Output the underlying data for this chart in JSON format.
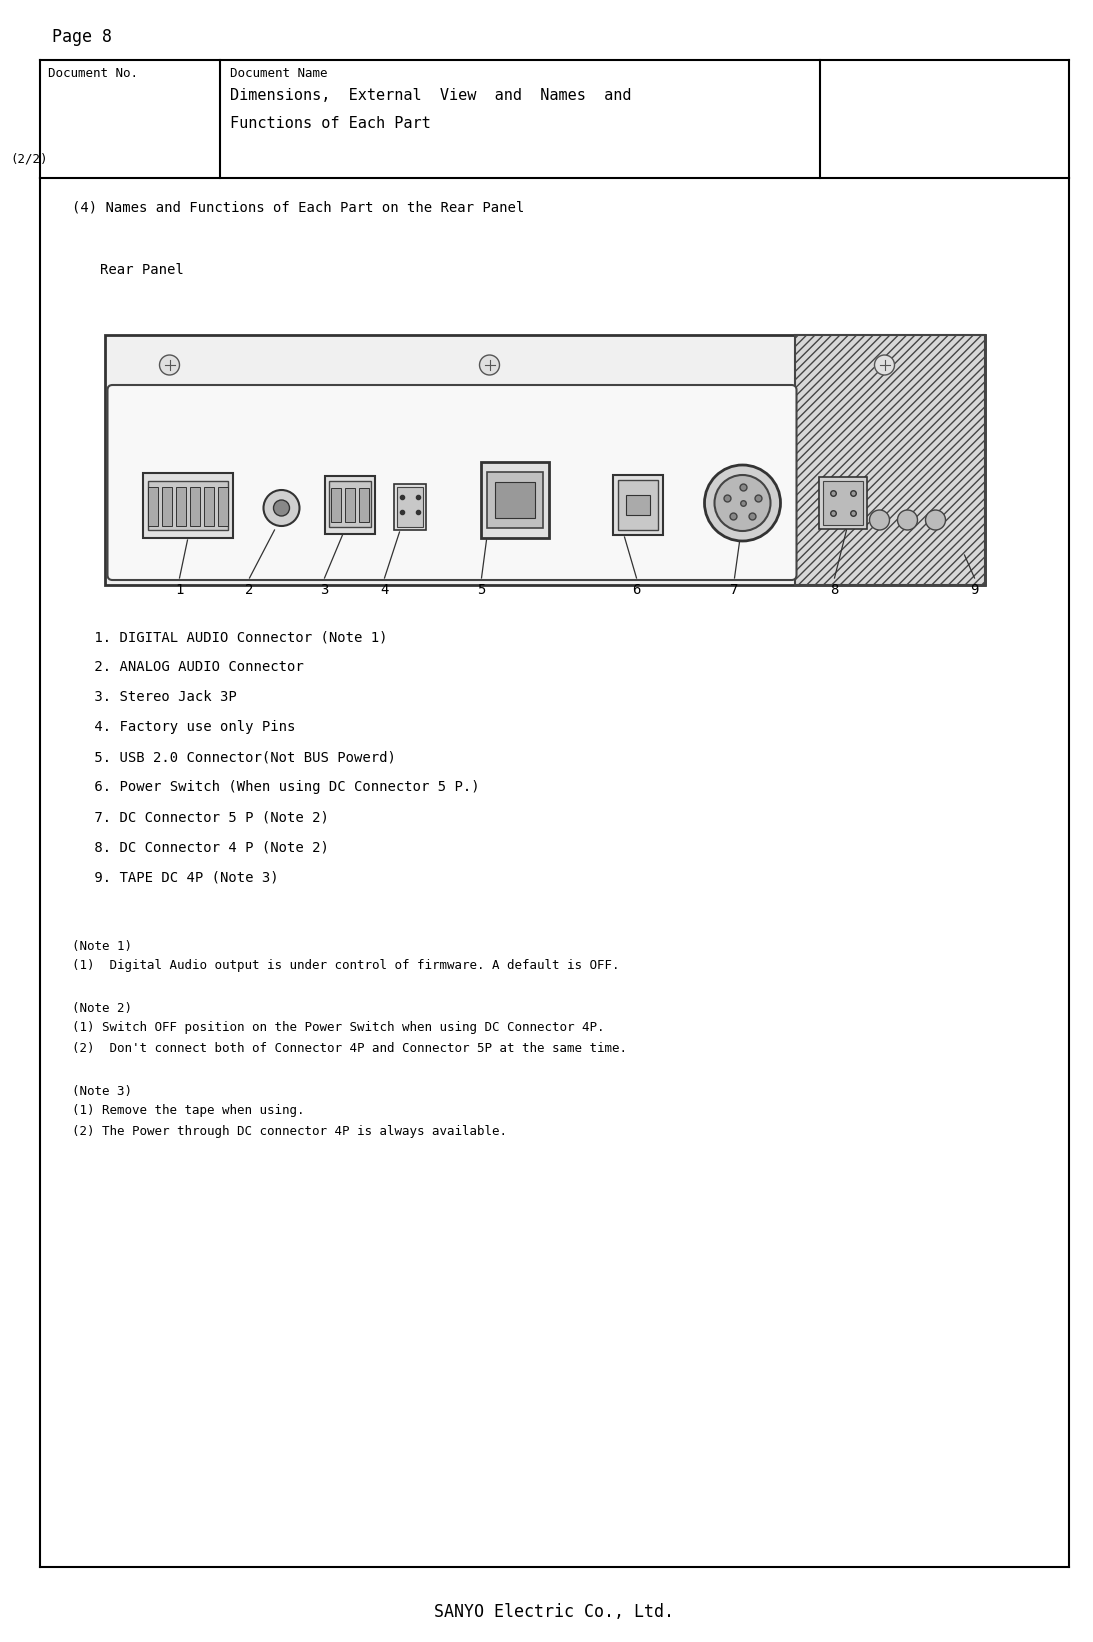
{
  "page_title": "Page 8",
  "doc_no_label": "Document No.",
  "doc_name_label": "Document Name",
  "doc_sub": "(2/2)",
  "doc_name_line1": "Dimensions,  External  View  and  Names  and",
  "doc_name_line2": "Functions of Each Part",
  "section_title": "(4) Names and Functions of Each Part on the Rear Panel",
  "rear_panel_label": "Rear Panel",
  "parts_list": [
    " 1. DIGITAL AUDIO Connector (Note 1)",
    " 2. ANALOG AUDIO Connector",
    " 3. Stereo Jack 3P",
    " 4. Factory use only Pins",
    " 5. USB 2.0 Connector(Not BUS Powerd)",
    " 6. Power Switch (When using DC Connector 5 P.)",
    " 7. DC Connector 5 P (Note 2)",
    " 8. DC Connector 4 P (Note 2)",
    " 9. TAPE DC 4P (Note 3)"
  ],
  "note1_title": "(Note 1)",
  "note1_lines": [
    "(1)  Digital Audio output is under control of firmware. A default is OFF."
  ],
  "note2_title": "(Note 2)",
  "note2_lines": [
    "(1) Switch OFF position on the Power Switch when using DC Connector 4P.",
    "(2)  Don't connect both of Connector 4P and Connector 5P at the same time."
  ],
  "note3_title": "(Note 3)",
  "note3_lines": [
    "(1) Remove the tape when using.",
    "(2) The Power through DC connector 4P is always available."
  ],
  "footer": "SANYO Electric Co., Ltd.",
  "bg_color": "#ffffff"
}
